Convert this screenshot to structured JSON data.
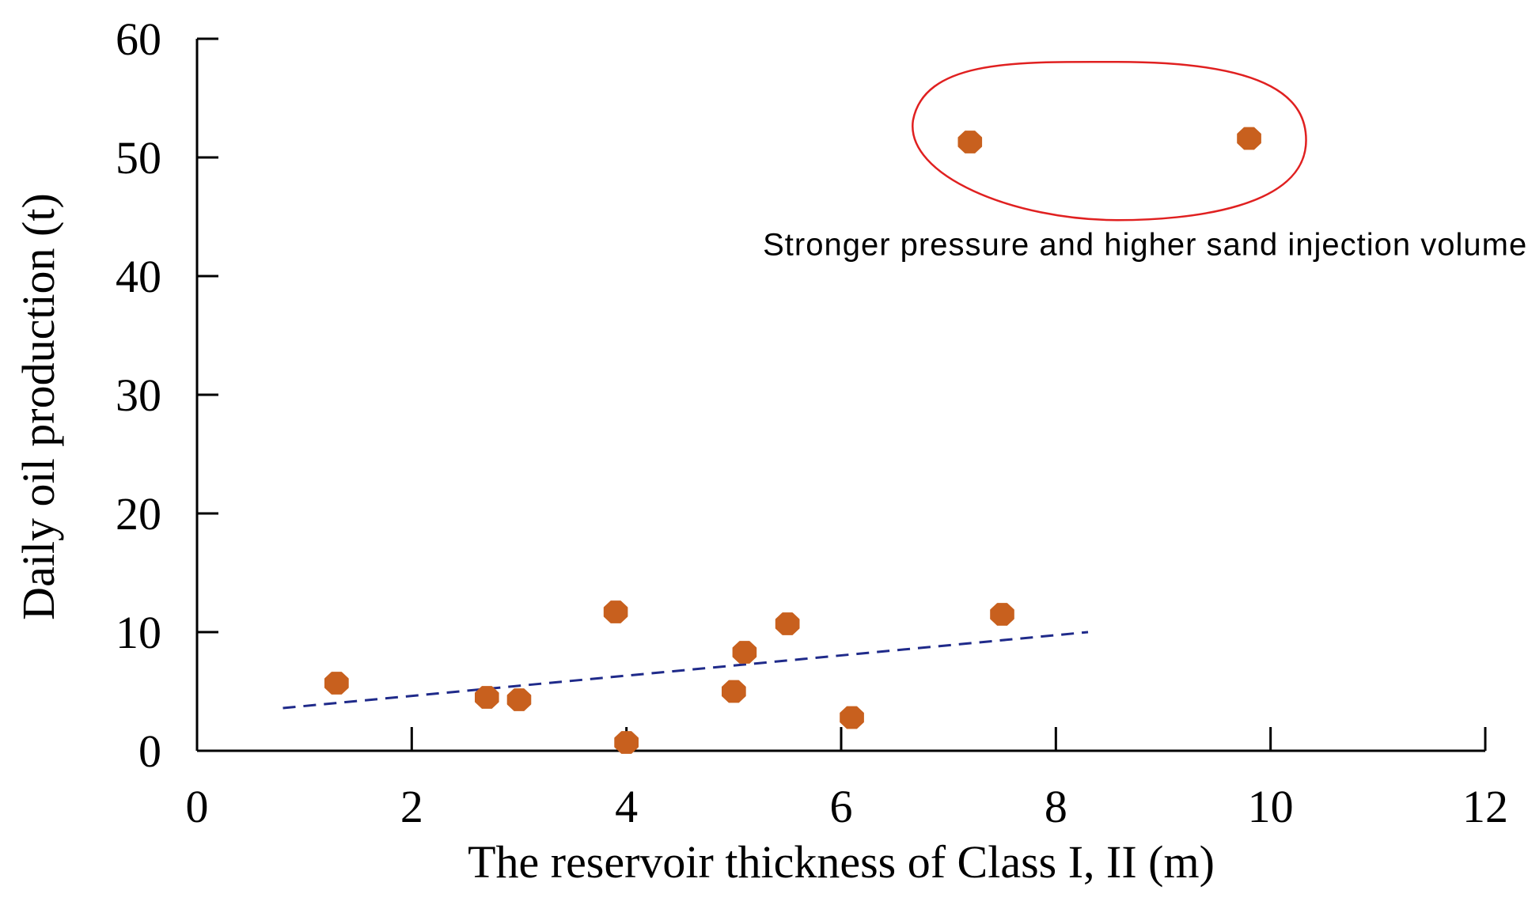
{
  "chart_data": {
    "type": "scatter",
    "title": "",
    "xlabel": "The reservoir thickness of Class I, II (m)",
    "ylabel": "Daily oil production (t)",
    "xlim": [
      0,
      12
    ],
    "ylim": [
      0,
      60
    ],
    "x_ticks": [
      0,
      2,
      4,
      6,
      8,
      10,
      12
    ],
    "y_ticks": [
      0,
      10,
      20,
      30,
      40,
      50,
      60
    ],
    "grid": false,
    "legend": "none",
    "series": [
      {
        "color": "#c8601e",
        "points": [
          {
            "x": 1.3,
            "y": 5.7
          },
          {
            "x": 2.7,
            "y": 4.5
          },
          {
            "x": 3.0,
            "y": 4.3
          },
          {
            "x": 3.9,
            "y": 11.7
          },
          {
            "x": 4.0,
            "y": 0.7
          },
          {
            "x": 5.0,
            "y": 5.0
          },
          {
            "x": 5.1,
            "y": 8.3
          },
          {
            "x": 5.5,
            "y": 10.7
          },
          {
            "x": 6.1,
            "y": 2.8
          },
          {
            "x": 7.5,
            "y": 11.5
          },
          {
            "x": 7.2,
            "y": 51.3
          },
          {
            "x": 9.8,
            "y": 51.6
          }
        ]
      }
    ],
    "trendline": {
      "style": "dashed",
      "color": "#1f2a8a",
      "from": {
        "x": 0.8,
        "y": 3.6
      },
      "to": {
        "x": 8.3,
        "y": 10.0
      }
    },
    "annotations": [
      {
        "text": "Stronger pressure and higher sand injection volume",
        "highlight_color": "#e02020",
        "highlighted_points": [
          {
            "x": 7.2,
            "y": 51.3
          },
          {
            "x": 9.8,
            "y": 51.6
          }
        ]
      }
    ]
  }
}
